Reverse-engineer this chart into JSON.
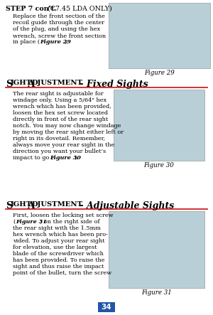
{
  "bg_color": "#ffffff",
  "page_num": "34",
  "page_num_bg": "#2255aa",
  "section1_title_bold": "STEP 7 con’t.",
  "section1_title_normal": " (C7.45 LDA ONLY)",
  "section1_body_line1": "Replace the front section of the",
  "section1_body_line2": "recoil guide through the center",
  "section1_body_line3": "of the plug, and using the hex",
  "section1_body_line4": "wrench, screw the front section",
  "section1_body_line5": "in place (​Figure 29​).",
  "section1_fig_caption": "Figure 29",
  "section1_fig_bg": "#b8cfd8",
  "section2_underline_color": "#cc2222",
  "section2_body": "The rear sight is adjustable for\nwindage only. Using a 5/64\" hex\nwrench which has been provided,\nloosen the hex set screw located\ndirectly in front of the rear sight\nnotch. You may now change windage\nby moving the rear sight either left or\nright in its dovetail. Remember,\nalways move your rear sight in the\ndirection you want your bullet’s\nimpact to go (Figure 30).",
  "section2_fig_caption": "Figure 30",
  "section2_fig_bg": "#b8cfd8",
  "section3_underline_color": "#cc2222",
  "section3_body": "First, loosen the locking set screw\n(Figure 31) on the right side of\nthe rear sight with the 1.5mm\nhex wrench which has been pro-\nvided. To adjust your rear sight\nfor elevation, use the largest\nblade of the screwdriver which\nhas been provided. To raise the\nsight and thus raise the impact\npoint of the bullet, turn the screw",
  "section3_fig_caption": "Figure 31",
  "section3_fig_bg": "#b8cfd8"
}
